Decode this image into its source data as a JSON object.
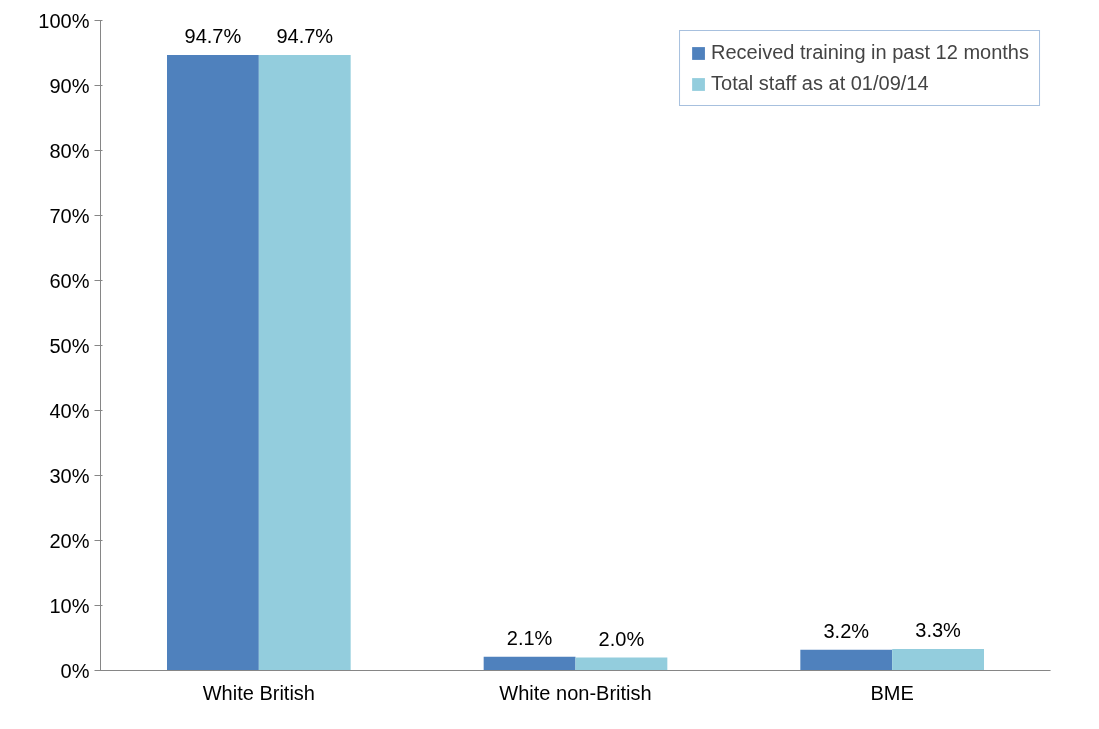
{
  "chart_data": {
    "type": "bar",
    "categories": [
      "White British",
      "White non-British",
      "BME"
    ],
    "series": [
      {
        "name": "Received training in past 12 months",
        "color": "#4f81bd",
        "values": [
          94.7,
          2.1,
          3.2
        ],
        "value_labels": [
          "94.7%",
          "2.1%",
          "3.2%"
        ]
      },
      {
        "name": "Total staff as at 01/09/14",
        "color": "#93cddd",
        "values": [
          94.7,
          2.0,
          3.3
        ],
        "value_labels": [
          "94.7%",
          "2.0%",
          "3.3%"
        ]
      }
    ],
    "ylim": [
      0,
      100
    ],
    "yticks": [
      {
        "value": 0,
        "label": "0%"
      },
      {
        "value": 10,
        "label": "10%"
      },
      {
        "value": 20,
        "label": "20%"
      },
      {
        "value": 30,
        "label": "30%"
      },
      {
        "value": 40,
        "label": "40%"
      },
      {
        "value": 50,
        "label": "50%"
      },
      {
        "value": 60,
        "label": "60%"
      },
      {
        "value": 70,
        "label": "70%"
      },
      {
        "value": 80,
        "label": "80%"
      },
      {
        "value": 90,
        "label": "90%"
      },
      {
        "value": 100,
        "label": "100%"
      }
    ],
    "grid": false,
    "legend": "top right"
  }
}
